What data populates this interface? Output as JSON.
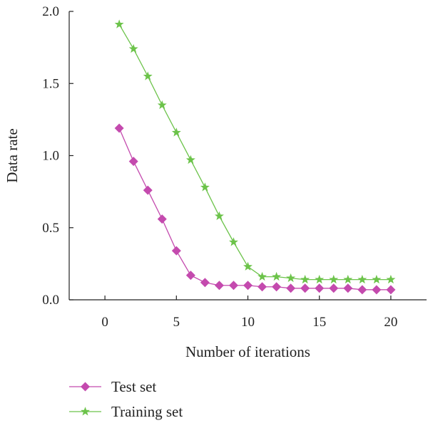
{
  "chart_data": {
    "type": "line",
    "title": "",
    "xlabel": "Number of iterations",
    "ylabel": "Data rate",
    "xlim": [
      -2.5,
      22.5
    ],
    "ylim": [
      0,
      2.0
    ],
    "xticks": [
      0,
      5,
      10,
      15,
      20
    ],
    "yticks": [
      0.0,
      0.5,
      1.0,
      1.5,
      2.0
    ],
    "xtick_labels": [
      "0",
      "5",
      "10",
      "15",
      "20"
    ],
    "ytick_labels": [
      "0.0",
      "0.5",
      "1.0",
      "1.5",
      "2.0"
    ],
    "grid": false,
    "legend_position": "bottom-left",
    "x": [
      1,
      2,
      3,
      4,
      5,
      6,
      7,
      8,
      9,
      10,
      11,
      12,
      13,
      14,
      15,
      16,
      17,
      18,
      19,
      20
    ],
    "series": [
      {
        "name": "Test set",
        "color": "#c44aae",
        "marker": "diamond",
        "values": [
          1.19,
          0.96,
          0.76,
          0.56,
          0.34,
          0.17,
          0.12,
          0.1,
          0.1,
          0.1,
          0.09,
          0.09,
          0.08,
          0.08,
          0.08,
          0.08,
          0.08,
          0.07,
          0.07,
          0.07
        ]
      },
      {
        "name": "Training set",
        "color": "#6cc34a",
        "marker": "star",
        "values": [
          1.91,
          1.74,
          1.55,
          1.35,
          1.16,
          0.97,
          0.78,
          0.58,
          0.4,
          0.23,
          0.16,
          0.16,
          0.15,
          0.14,
          0.14,
          0.14,
          0.14,
          0.14,
          0.14,
          0.14
        ]
      }
    ]
  }
}
